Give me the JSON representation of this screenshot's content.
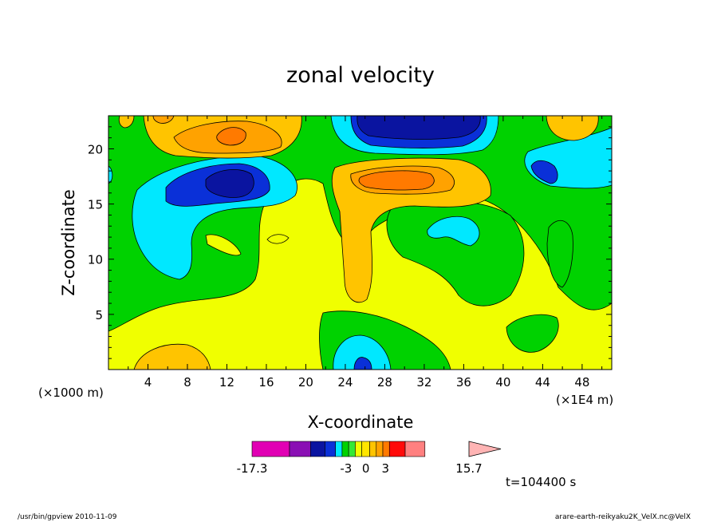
{
  "chart_data": {
    "type": "heatmap",
    "subtype": "filled-contour",
    "title": "zonal velocity",
    "xlabel": "X-coordinate",
    "ylabel": "Z-coordinate",
    "xlim": [
      0,
      51
    ],
    "ylim": [
      0,
      23
    ],
    "x_ticks": [
      4,
      8,
      12,
      16,
      20,
      24,
      28,
      32,
      36,
      40,
      44,
      48
    ],
    "y_ticks": [
      5,
      10,
      15,
      20
    ],
    "x_unit_left": "(×1000 m)",
    "x_unit_right": "(×1E4 m)",
    "time_label": "t=104400 s",
    "colorbar": {
      "labels": [
        "-17.3",
        "-3",
        "0",
        "3",
        "15.7"
      ],
      "min": -17.3,
      "max": 15.7,
      "colors": [
        "#e100b4",
        "#8a10b4",
        "#0a14a0",
        "#0a30d8",
        "#00e8ff",
        "#00d200",
        "#34e834",
        "#f0ff00",
        "#ffe600",
        "#ffc400",
        "#ffa200",
        "#ff7a00",
        "#ff0a0a",
        "#ff8080",
        "#ffb4b4"
      ]
    },
    "footer_left": "/usr/bin/gpview   2010-11-09",
    "footer_right": "arare-earth-reikyaku2K_VelX.nc@VelX"
  }
}
